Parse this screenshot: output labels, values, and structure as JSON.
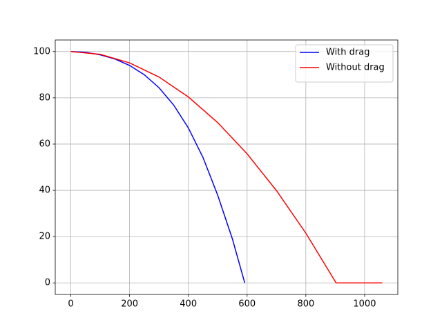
{
  "chart_data": {
    "type": "line",
    "series": [
      {
        "name": "With drag",
        "color": "blue",
        "x": [
          0,
          50,
          100,
          150,
          200,
          250,
          300,
          350,
          400,
          450,
          500,
          550,
          592
        ],
        "values": [
          100,
          99.7,
          98.6,
          96.8,
          94.0,
          90.0,
          84.4,
          76.9,
          67.0,
          54.2,
          37.9,
          19,
          0
        ]
      },
      {
        "name": "Without drag",
        "color": "red",
        "x": [
          0,
          100,
          200,
          300,
          400,
          500,
          600,
          700,
          800,
          903,
          1060
        ],
        "values": [
          100,
          98.8,
          95.1,
          89.0,
          80.4,
          69.3,
          55.8,
          39.9,
          21.5,
          0,
          0
        ]
      }
    ],
    "xlim": [
      -53,
      1113
    ],
    "xticks": [
      0,
      200,
      400,
      600,
      800,
      1000
    ],
    "ylim": [
      -5,
      105
    ],
    "yticks": [
      0,
      20,
      40,
      60,
      80,
      100
    ],
    "grid": true,
    "legend": "upper right"
  }
}
